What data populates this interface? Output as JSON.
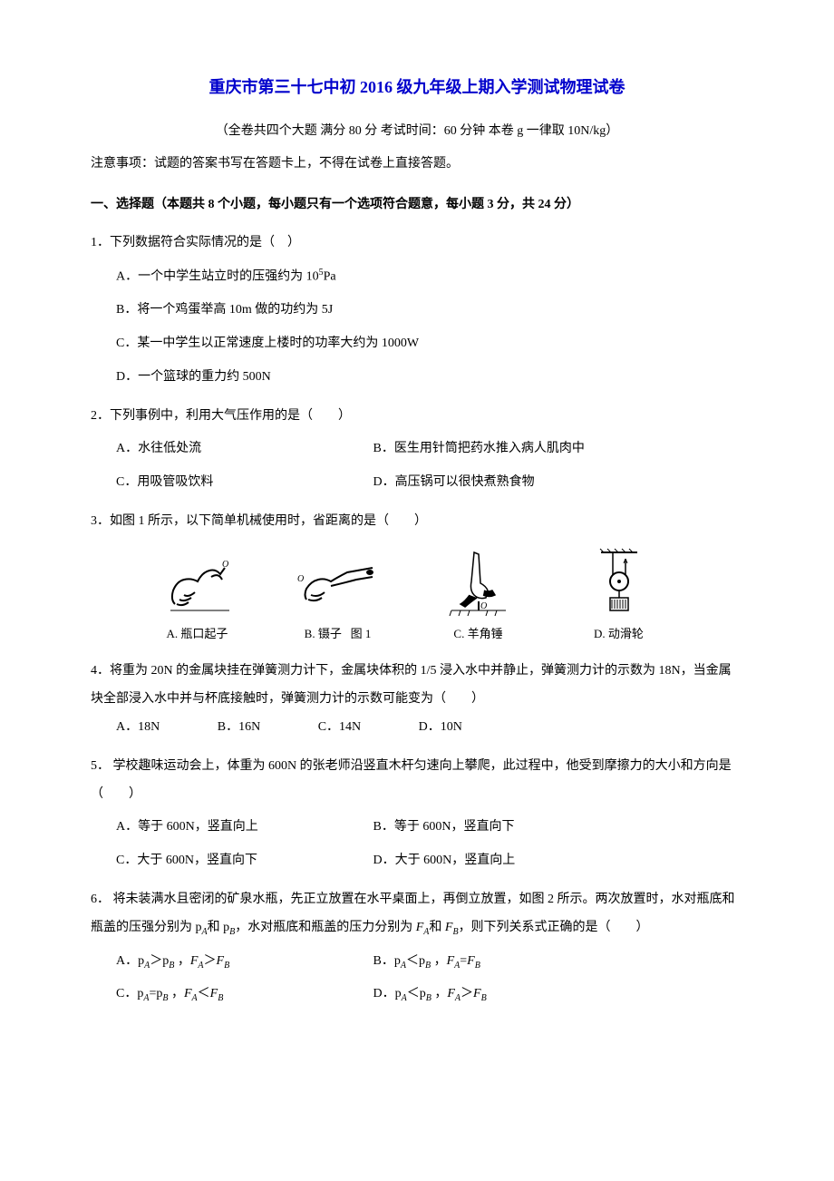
{
  "title": "重庆市第三十七中初 2016 级九年级上期入学测试物理试卷",
  "subtitle": "（全卷共四个大题 满分 80 分 考试时间：60 分钟 本卷 g 一律取 10N/kg）",
  "notice": "注意事项：试题的答案书写在答题卡上，不得在试卷上直接答题。",
  "section1_header": "一、选择题（本题共 8 个小题，每小题只有一个选项符合题意，每小题 3 分，共 24 分）",
  "q1": {
    "stem": "1．下列数据符合实际情况的是（　）",
    "optA_pre": "A．一个中学生站立时的压强约为 10",
    "optA_sup": "5",
    "optA_post": "Pa",
    "optB": "B．将一个鸡蛋举高 10m 做的功约为 5J",
    "optC": "C．某一中学生以正常速度上楼时的功率大约为 1000W",
    "optD": "D．一个篮球的重力约 500N"
  },
  "q2": {
    "stem": "2．下列事例中，利用大气压作用的是（　　）",
    "optA": "A．水往低处流",
    "optB": "B．医生用针筒把药水推入病人肌肉中",
    "optC": "C．用吸管吸饮料",
    "optD": "D．高压锅可以很快煮熟食物"
  },
  "q3": {
    "stem": "3．如图 1 所示，以下简单机械使用时，省距离的是（　　）",
    "labelA": "A. 瓶口起子",
    "labelB": "B. 镊子",
    "caption": "图 1",
    "labelC": "C. 羊角锤",
    "labelD": "D. 动滑轮"
  },
  "q4": {
    "stem": "4．将重为 20N 的金属块挂在弹簧测力计下，金属块体积的 1/5 浸入水中并静止，弹簧测力计的示数为 18N，当金属块全部浸入水中并与杯底接触时，弹簧测力计的示数可能变为（　　）",
    "optA": "A．18N",
    "optB": "B．16N",
    "optC": "C．14N",
    "optD": "D．10N"
  },
  "q5": {
    "stem": "5． 学校趣味运动会上，体重为 600N 的张老师沿竖直木杆匀速向上攀爬，此过程中，他受到摩擦力的大小和方向是（　　）",
    "optA": "A．等于 600N，竖直向上",
    "optB": "B．等于 600N，竖直向下",
    "optC": "C．大于 600N，竖直向下",
    "optD": "D．大于 600N，竖直向上"
  },
  "q6": {
    "stem_pre": "6． 将未装满水且密闭的矿泉水瓶，先正立放置在水平桌面上，再倒立放置，如图 2 所示。两次放置时，水对瓶底和瓶盖的压强分别为 p",
    "stem_A1": "A",
    "stem_mid1": "和 p",
    "stem_B1": "B",
    "stem_mid2": "，水对瓶底和瓶盖的压力分别为 ",
    "stem_FA": "F",
    "stem_A2": "A",
    "stem_mid3": "和 ",
    "stem_FB": "F",
    "stem_B2": "B",
    "stem_post": "，则下列关系式正确的是（　　）",
    "optA": "A．p<sub>A</sub>＞p<sub>B</sub> ，<i>F<sub>A</sub></i>＞<i>F<sub>B</sub></i>",
    "optB": "B．p<sub>A</sub>＜p<sub>B</sub> ，<i>F<sub>A</sub></i>=<i>F<sub>B</sub></i>",
    "optC": "C．p<sub>A</sub>=p<sub>B</sub> ，<i>F<sub>A</sub></i>＜<i>F<sub>B</sub></i>",
    "optD": "D．p<sub>A</sub>＜p<sub>B</sub> ，<i>F<sub>A</sub></i>＞<i>F<sub>B</sub></i>"
  },
  "colors": {
    "title": "#0000cc",
    "text": "#000000",
    "bg": "#ffffff"
  }
}
